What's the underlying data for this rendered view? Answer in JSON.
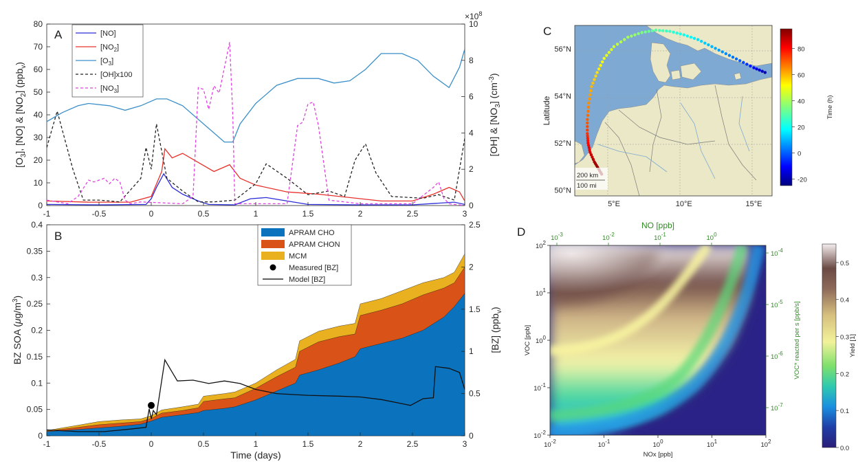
{
  "colors": {
    "no": "#2b2bd9",
    "no2": "#e8302a",
    "o3": "#3a8fc9",
    "oh": "#222222",
    "no3": "#e040e0",
    "cho": "#0b72bd",
    "chon": "#d95318",
    "mcm": "#e9b01f",
    "green_axis": "#2e8b22",
    "sea": "#7ea9d2",
    "land": "#eae8c6"
  },
  "chart_data": [
    {
      "panel": "A",
      "type": "line",
      "xlim": [
        -1,
        3
      ],
      "xticks": [
        "-1",
        "-0.5",
        "0",
        "0.5",
        "1",
        "1.5",
        "2",
        "2.5",
        "3"
      ],
      "ylabel_left": "[O3], [NO] & [NO2] (ppbv)",
      "ylim_left": [
        0,
        80
      ],
      "yticks_left": [
        "0",
        "10",
        "20",
        "30",
        "40",
        "50",
        "60",
        "70",
        "80"
      ],
      "ylabel_right": "[OH] & [NO3] (cm-3)",
      "ylim_right": [
        0,
        10
      ],
      "yticks_right": [
        "0",
        "2",
        "4",
        "6",
        "8",
        "10"
      ],
      "right_multiplier": "×10",
      "right_multiplier_exp": "8",
      "legend": [
        {
          "label": "[NO]",
          "key": "no",
          "dash": false
        },
        {
          "label": "[NO",
          "sub": "2",
          "tail": "]",
          "key": "no2",
          "dash": false
        },
        {
          "label": "[O",
          "sub": "3",
          "tail": "]",
          "key": "o3",
          "dash": false
        },
        {
          "label": "[OH]x100",
          "key": "oh",
          "dash": true
        },
        {
          "label": "[NO",
          "sub": "3",
          "tail": "]",
          "key": "no3",
          "dash": true
        }
      ],
      "series": [
        {
          "key": "o3",
          "axis": "left",
          "x": [
            -1,
            -0.85,
            -0.7,
            -0.6,
            -0.4,
            -0.25,
            -0.1,
            0.05,
            0.15,
            0.3,
            0.45,
            0.6,
            0.7,
            0.78,
            0.85,
            1.0,
            1.2,
            1.4,
            1.6,
            1.75,
            1.9,
            2.05,
            2.2,
            2.4,
            2.55,
            2.7,
            2.85,
            2.95,
            3.0
          ],
          "y": [
            37,
            41,
            44,
            45,
            44,
            42,
            44,
            47,
            47,
            44,
            38,
            32,
            28,
            28,
            36,
            45,
            53,
            56,
            56,
            54,
            55,
            60,
            67,
            67,
            64,
            57,
            52,
            61,
            69
          ]
        },
        {
          "key": "no2",
          "axis": "left",
          "x": [
            -1,
            -0.6,
            -0.2,
            0.0,
            0.1,
            0.13,
            0.2,
            0.3,
            0.45,
            0.6,
            0.75,
            0.85,
            1.0,
            1.3,
            1.6,
            1.9,
            2.2,
            2.5,
            2.7,
            2.85,
            2.95,
            3.0
          ],
          "y": [
            2,
            1.5,
            1.5,
            4,
            15,
            25,
            21,
            23,
            19,
            15,
            18,
            12,
            9,
            6,
            5,
            3.5,
            2,
            2,
            5,
            8,
            6,
            2
          ]
        },
        {
          "key": "no",
          "axis": "left",
          "x": [
            -1,
            -0.5,
            -0.05,
            0.0,
            0.05,
            0.12,
            0.2,
            0.3,
            0.45,
            0.55,
            0.8,
            0.95,
            1.1,
            1.3,
            1.5,
            2.0,
            2.5,
            2.9,
            3.0
          ],
          "y": [
            0.5,
            0.3,
            0.5,
            3,
            8,
            14,
            8,
            5,
            2,
            0.5,
            0.3,
            3,
            3.5,
            2,
            0.5,
            0.3,
            0.3,
            1.5,
            0.5
          ]
        },
        {
          "key": "oh",
          "axis": "right",
          "x": [
            -1,
            -0.9,
            -0.75,
            -0.65,
            -0.5,
            -0.3,
            -0.1,
            -0.05,
            0,
            0.05,
            0.15,
            0.3,
            0.45,
            0.6,
            0.8,
            1.0,
            1.1,
            1.3,
            1.5,
            1.7,
            1.85,
            1.95,
            2.05,
            2.15,
            2.3,
            2.6,
            2.75,
            2.9,
            3.0
          ],
          "y": [
            3.2,
            5.2,
            2.0,
            0.3,
            0.3,
            0.2,
            1.5,
            3.2,
            2.0,
            4.5,
            1.5,
            0.8,
            0.2,
            0.2,
            0.3,
            1.2,
            2.3,
            1.5,
            0.6,
            0.8,
            0.5,
            2.5,
            3.4,
            1.8,
            0.5,
            0.4,
            0.6,
            0.3,
            3.7
          ]
        },
        {
          "key": "no3",
          "axis": "right",
          "x": [
            -1,
            -0.8,
            -0.7,
            -0.6,
            -0.55,
            -0.45,
            -0.4,
            -0.35,
            -0.3,
            -0.25,
            -0.2,
            -0.1,
            0.3,
            0.4,
            0.45,
            0.5,
            0.55,
            0.6,
            0.65,
            0.7,
            0.75,
            0.78,
            0.8,
            1.3,
            1.4,
            1.45,
            1.5,
            1.55,
            1.6,
            1.7,
            2.0,
            2.5,
            2.7,
            2.75,
            2.8,
            2.85,
            3.0
          ],
          "y": [
            0.3,
            0.1,
            0.5,
            1.4,
            1.3,
            1.5,
            1.2,
            1.5,
            1.3,
            0.3,
            0.1,
            0.2,
            0.1,
            0.5,
            6.5,
            6.4,
            5.3,
            6.6,
            6.2,
            7.6,
            9.0,
            5.0,
            0.1,
            0.1,
            4.4,
            4.6,
            5.6,
            5.7,
            4.4,
            0.3,
            0.1,
            0.1,
            1.0,
            1.3,
            0.4,
            0.1,
            0.0
          ]
        }
      ]
    },
    {
      "panel": "B",
      "type": "area",
      "xlabel": "Time (days)",
      "xlim": [
        -1,
        3
      ],
      "xticks": [
        "-1",
        "-0.5",
        "0",
        "0.5",
        "1",
        "1.5",
        "2",
        "2.5",
        "3"
      ],
      "ylabel_left": "BZ SOA (μg/m3)",
      "ylim_left": [
        0,
        0.4
      ],
      "yticks_left": [
        "0",
        "0.05",
        "0.1",
        "0.15",
        "0.2",
        "0.25",
        "0.3",
        "0.35",
        "0.4"
      ],
      "ylabel_right": "[BZ] (ppbv)",
      "ylim_right": [
        0,
        2.5
      ],
      "yticks_right": [
        "0",
        "0.5",
        "1",
        "1.5",
        "2",
        "2.5"
      ],
      "legend": [
        {
          "label": "APRAM CHO",
          "key": "cho",
          "kind": "patch"
        },
        {
          "label": "APRAM CHON",
          "key": "chon",
          "kind": "patch"
        },
        {
          "label": "MCM",
          "key": "mcm",
          "kind": "patch"
        },
        {
          "label": "Measured [BZ]",
          "key": "oh",
          "kind": "dot"
        },
        {
          "label": "Model [BZ]",
          "key": "oh",
          "kind": "line"
        }
      ],
      "x": [
        -1,
        -0.7,
        -0.5,
        -0.3,
        -0.1,
        0,
        0.1,
        0.3,
        0.45,
        0.5,
        0.7,
        0.8,
        1.0,
        1.2,
        1.38,
        1.42,
        1.6,
        1.8,
        1.95,
        2.0,
        2.2,
        2.4,
        2.6,
        2.8,
        2.9,
        3.0
      ],
      "series": [
        {
          "name": "APRAM CHO",
          "key": "cho",
          "values": [
            0.008,
            0.012,
            0.015,
            0.018,
            0.022,
            0.028,
            0.035,
            0.04,
            0.044,
            0.048,
            0.052,
            0.055,
            0.068,
            0.085,
            0.1,
            0.115,
            0.125,
            0.138,
            0.15,
            0.165,
            0.175,
            0.185,
            0.2,
            0.225,
            0.245,
            0.27
          ]
        },
        {
          "name": "APRAM CHON",
          "key": "chon",
          "values": [
            0.009,
            0.016,
            0.021,
            0.024,
            0.027,
            0.033,
            0.043,
            0.048,
            0.053,
            0.065,
            0.07,
            0.072,
            0.09,
            0.112,
            0.13,
            0.16,
            0.178,
            0.188,
            0.193,
            0.228,
            0.238,
            0.25,
            0.267,
            0.28,
            0.29,
            0.32
          ]
        },
        {
          "name": "MCM",
          "key": "mcm",
          "values": [
            0.01,
            0.02,
            0.027,
            0.03,
            0.032,
            0.038,
            0.049,
            0.055,
            0.06,
            0.075,
            0.08,
            0.083,
            0.1,
            0.125,
            0.145,
            0.18,
            0.198,
            0.208,
            0.213,
            0.25,
            0.26,
            0.275,
            0.29,
            0.3,
            0.31,
            0.345
          ]
        }
      ],
      "model_bz": {
        "x": [
          -1,
          -0.7,
          -0.45,
          -0.2,
          -0.05,
          -0.02,
          0,
          0.02,
          0.05,
          0.13,
          0.25,
          0.4,
          0.55,
          0.7,
          0.85,
          1.0,
          1.2,
          1.5,
          1.8,
          2.0,
          2.2,
          2.4,
          2.48,
          2.6,
          2.7,
          2.72,
          2.85,
          2.95,
          3.0
        ],
        "y": [
          0.07,
          0.05,
          0.05,
          0.08,
          0.1,
          0.32,
          0.2,
          0.3,
          0.25,
          0.9,
          0.65,
          0.66,
          0.62,
          0.65,
          0.62,
          0.55,
          0.5,
          0.48,
          0.47,
          0.46,
          0.43,
          0.38,
          0.36,
          0.44,
          0.45,
          0.82,
          0.8,
          0.75,
          0.55
        ]
      },
      "measured_bz": {
        "x": 0,
        "y": 0.36
      }
    },
    {
      "panel": "C",
      "type": "map",
      "ylabel": "Latitude",
      "lat_ticks": [
        "50°N",
        "52°N",
        "54°N",
        "56°N"
      ],
      "lon_ticks": [
        "5°E",
        "10°E",
        "15°E"
      ],
      "scale_labels": [
        "200 km",
        "100 mi"
      ],
      "colorbar_label": "Time (h)",
      "colorbar_range": [
        -25,
        95
      ],
      "colorbar_ticks": [
        "80",
        "60",
        "40",
        "20",
        "0",
        "-20"
      ],
      "trajectory": {
        "lon": [
          15.8,
          15.0,
          14.0,
          13.0,
          12.0,
          11.0,
          10.0,
          9.0,
          8.0,
          7.0,
          6.0,
          5.0,
          4.3,
          3.8,
          3.4,
          3.2,
          3.1,
          3.1,
          3.15,
          3.3,
          3.6,
          3.9,
          4.2
        ],
        "lat": [
          55.0,
          55.2,
          55.5,
          55.8,
          56.1,
          56.4,
          56.6,
          56.75,
          56.8,
          56.7,
          56.5,
          56.1,
          55.6,
          55.0,
          54.4,
          53.7,
          53.0,
          52.4,
          52.0,
          51.6,
          51.2,
          50.9,
          50.6
        ],
        "time_h": [
          -20,
          -10,
          0,
          5,
          10,
          15,
          20,
          25,
          30,
          35,
          40,
          45,
          50,
          55,
          60,
          65,
          70,
          75,
          80,
          85,
          90,
          93,
          96
        ]
      }
    },
    {
      "panel": "D",
      "type": "heatmap",
      "xlabel": "NOx [ppb]",
      "ylabel": "VOC [ppb]",
      "top_label": "NO [ppb]",
      "right_label": "VOC* reacted per s [ppb/s]",
      "colorbar_label": "Yield [1]",
      "colorbar_range": [
        0,
        0.55
      ],
      "colorbar_ticks": [
        "0.0",
        "0.1",
        "0.2",
        "0.3",
        "0.4",
        "0.5"
      ],
      "xticks": [
        {
          "b": "10",
          "e": "-2"
        },
        {
          "b": "10",
          "e": "-1"
        },
        {
          "b": "10",
          "e": "0"
        },
        {
          "b": "10",
          "e": "1"
        },
        {
          "b": "10",
          "e": "2"
        }
      ],
      "yticks": [
        {
          "b": "10",
          "e": "-2"
        },
        {
          "b": "10",
          "e": "-1"
        },
        {
          "b": "10",
          "e": "0"
        },
        {
          "b": "10",
          "e": "1"
        },
        {
          "b": "10",
          "e": "2"
        }
      ],
      "top_ticks": [
        {
          "b": "10",
          "e": "-3"
        },
        {
          "b": "10",
          "e": "-2"
        },
        {
          "b": "10",
          "e": "-1"
        },
        {
          "b": "10",
          "e": "0"
        }
      ],
      "right_ticks": [
        {
          "b": "10",
          "e": "-7"
        },
        {
          "b": "10",
          "e": "-6"
        },
        {
          "b": "10",
          "e": "-5"
        },
        {
          "b": "10",
          "e": "-4"
        }
      ]
    }
  ]
}
